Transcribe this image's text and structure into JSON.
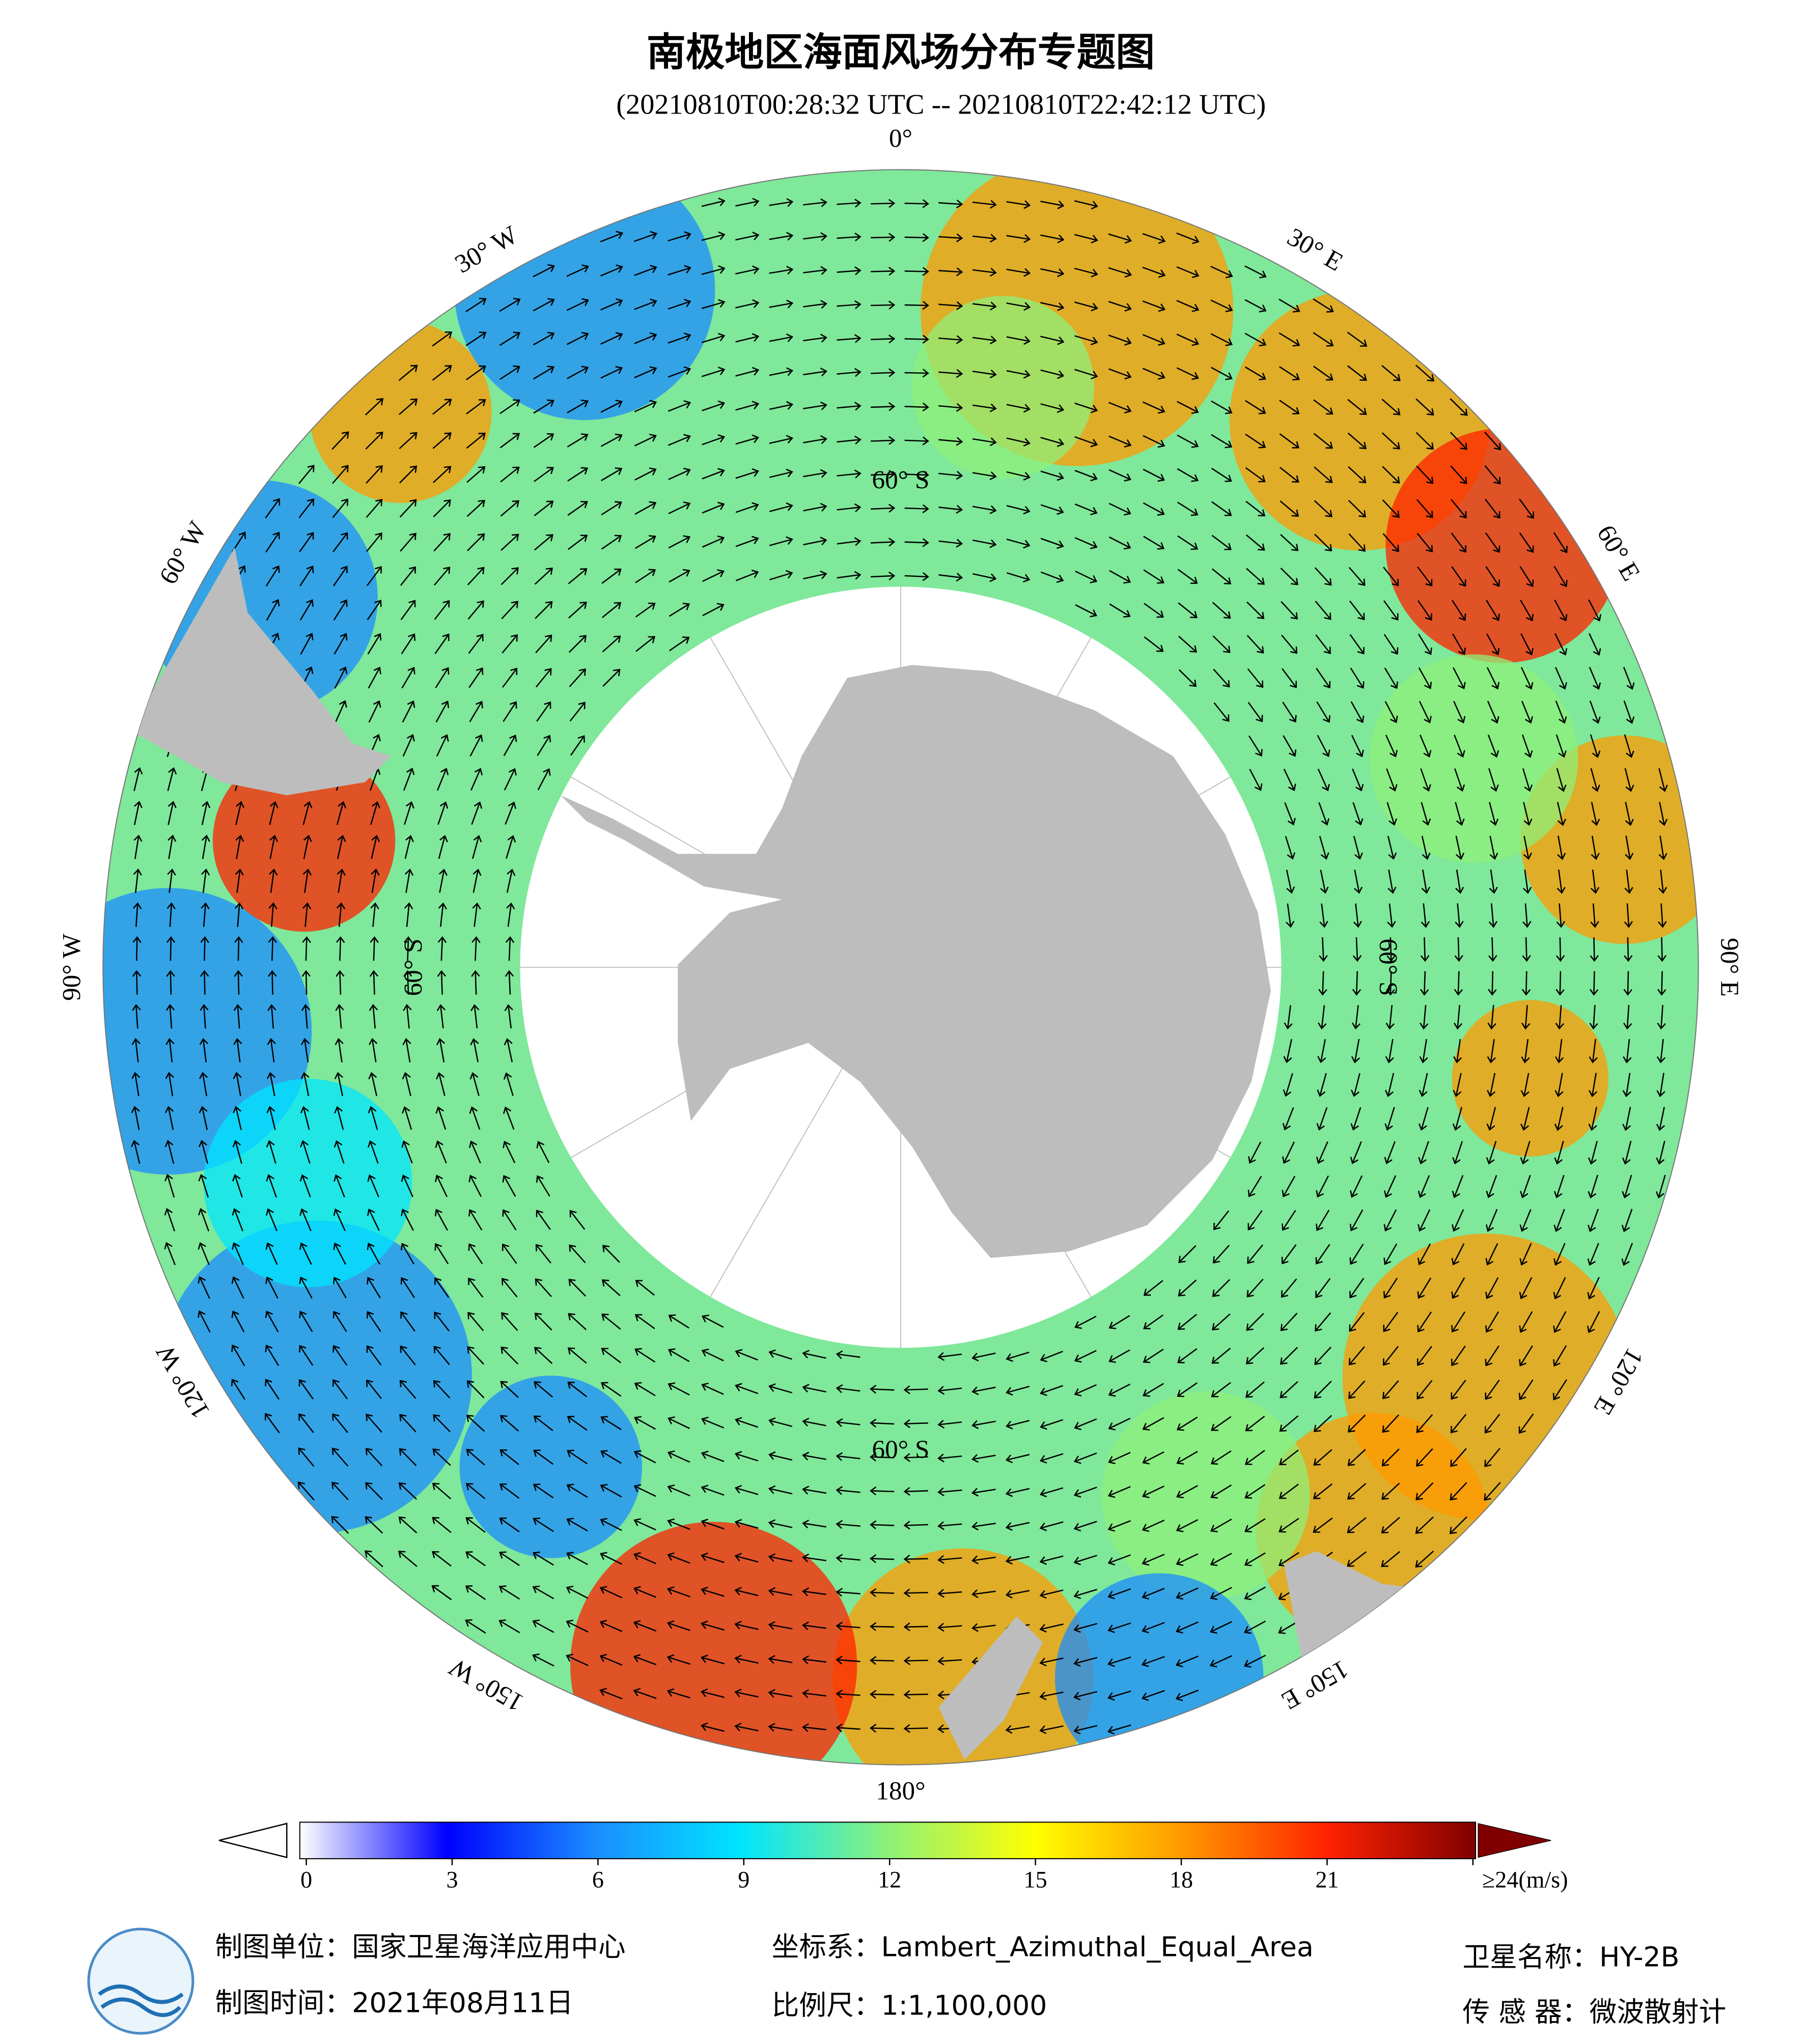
{
  "title": "南极地区海面风场分布专题图",
  "subtitle": "(20210810T00:28:32 UTC -- 20210810T22:42:12 UTC)",
  "graticule": {
    "lon_labels": [
      "0°",
      "30° E",
      "60° E",
      "90° E",
      "120° E",
      "150° E",
      "180°",
      "150° W",
      "120° W",
      "90° W",
      "60° W",
      "30° W"
    ],
    "lat_labels": [
      "60° S",
      "60° S",
      "60° S",
      "60° S"
    ]
  },
  "colorbar": {
    "range": [
      0,
      24
    ],
    "ticks": [
      0,
      3,
      6,
      9,
      12,
      15,
      18,
      21,
      {
        "value": 24,
        "label": "≥24(m/s)"
      }
    ],
    "colormap": [
      "#ffffff",
      "#0000ff",
      "#1a8cff",
      "#00e5ff",
      "#8ef07a",
      "#ffff00",
      "#ff9900",
      "#ff2200",
      "#800000"
    ]
  },
  "footer": {
    "unit": "制图单位：国家卫星海洋应用中心",
    "projection": "坐标系：Lambert_Azimuthal_Equal_Area",
    "satellite": "卫星名称：HY-2B",
    "date": "制图时间：2021年08月11日",
    "scale": "比例尺：1:1,100,000",
    "sensor": "传 感 器：微波散射计"
  }
}
